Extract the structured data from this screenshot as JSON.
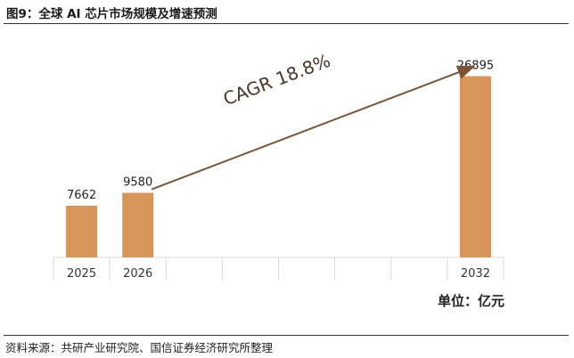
{
  "figure": {
    "title": "图9：全球 AI 芯片市场规模及增速预测",
    "unit": "单位：亿元",
    "source": "资料来源：共研产业研究院、国信证券经济研究所整理"
  },
  "colors": {
    "bar": "#D89559",
    "arrow": "#7A5538",
    "grid": "#D9D9D9"
  },
  "chart_data": {
    "type": "bar",
    "categories": [
      "2025",
      "2026",
      "",
      "",
      "",
      "",
      "",
      "2032"
    ],
    "values": [
      7662,
      9580,
      null,
      null,
      null,
      null,
      null,
      26895
    ],
    "labels": [
      "7662",
      "9580",
      "",
      "",
      "",
      "",
      "",
      "26895"
    ],
    "ylim": [
      0,
      30000
    ],
    "annotation": {
      "text": "CAGR 18.8%",
      "from": "2026",
      "to": "2032"
    },
    "xlabel": "",
    "ylabel": ""
  }
}
